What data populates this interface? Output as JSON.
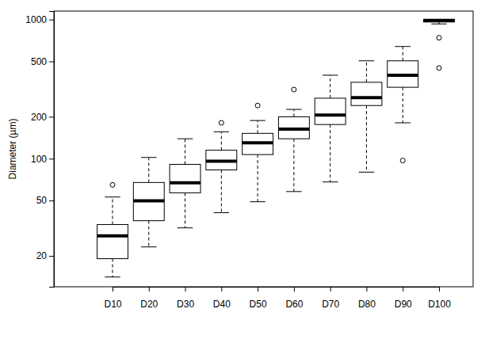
{
  "chart_data": {
    "type": "box",
    "y_label": "Diameter (µm)",
    "categories": [
      "D10",
      "D20",
      "D30",
      "D40",
      "D50",
      "D60",
      "D70",
      "D80",
      "D90",
      "D100"
    ],
    "boxes": [
      {
        "whisker_low": 14.1,
        "q1": 19.1,
        "median": 27.9,
        "q3": 33.6,
        "whisker_high": 53,
        "outliers": [
          64.8
        ]
      },
      {
        "whisker_low": 23.2,
        "q1": 35.8,
        "median": 49.8,
        "q3": 67.4,
        "whisker_high": 102,
        "outliers": []
      },
      {
        "whisker_low": 31.8,
        "q1": 56.8,
        "median": 67,
        "q3": 91,
        "whisker_high": 139,
        "outliers": []
      },
      {
        "whisker_low": 40.9,
        "q1": 83,
        "median": 96,
        "q3": 115,
        "whisker_high": 156,
        "outliers": [
          181
        ]
      },
      {
        "whisker_low": 49,
        "q1": 107,
        "median": 130,
        "q3": 152,
        "whisker_high": 188,
        "outliers": [
          241
        ]
      },
      {
        "whisker_low": 58,
        "q1": 139,
        "median": 163,
        "q3": 200,
        "whisker_high": 226,
        "outliers": [
          314
        ]
      },
      {
        "whisker_low": 68,
        "q1": 176,
        "median": 206,
        "q3": 272,
        "whisker_high": 398,
        "outliers": []
      },
      {
        "whisker_low": 80,
        "q1": 241,
        "median": 275,
        "q3": 354,
        "whisker_high": 505,
        "outliers": []
      },
      {
        "whisker_low": 181,
        "q1": 326,
        "median": 398,
        "q3": 505,
        "whisker_high": 640,
        "outliers": [
          97
        ]
      },
      {
        "whisker_low": 930,
        "q1": 960,
        "median": 985,
        "q3": 1000,
        "whisker_high": 1000,
        "outliers": [
          740,
          448
        ]
      }
    ],
    "log": "y",
    "ylim": [
      12,
      1150
    ],
    "yticks": [
      20,
      50,
      100,
      200,
      500,
      1000
    ],
    "color": "#000000"
  }
}
